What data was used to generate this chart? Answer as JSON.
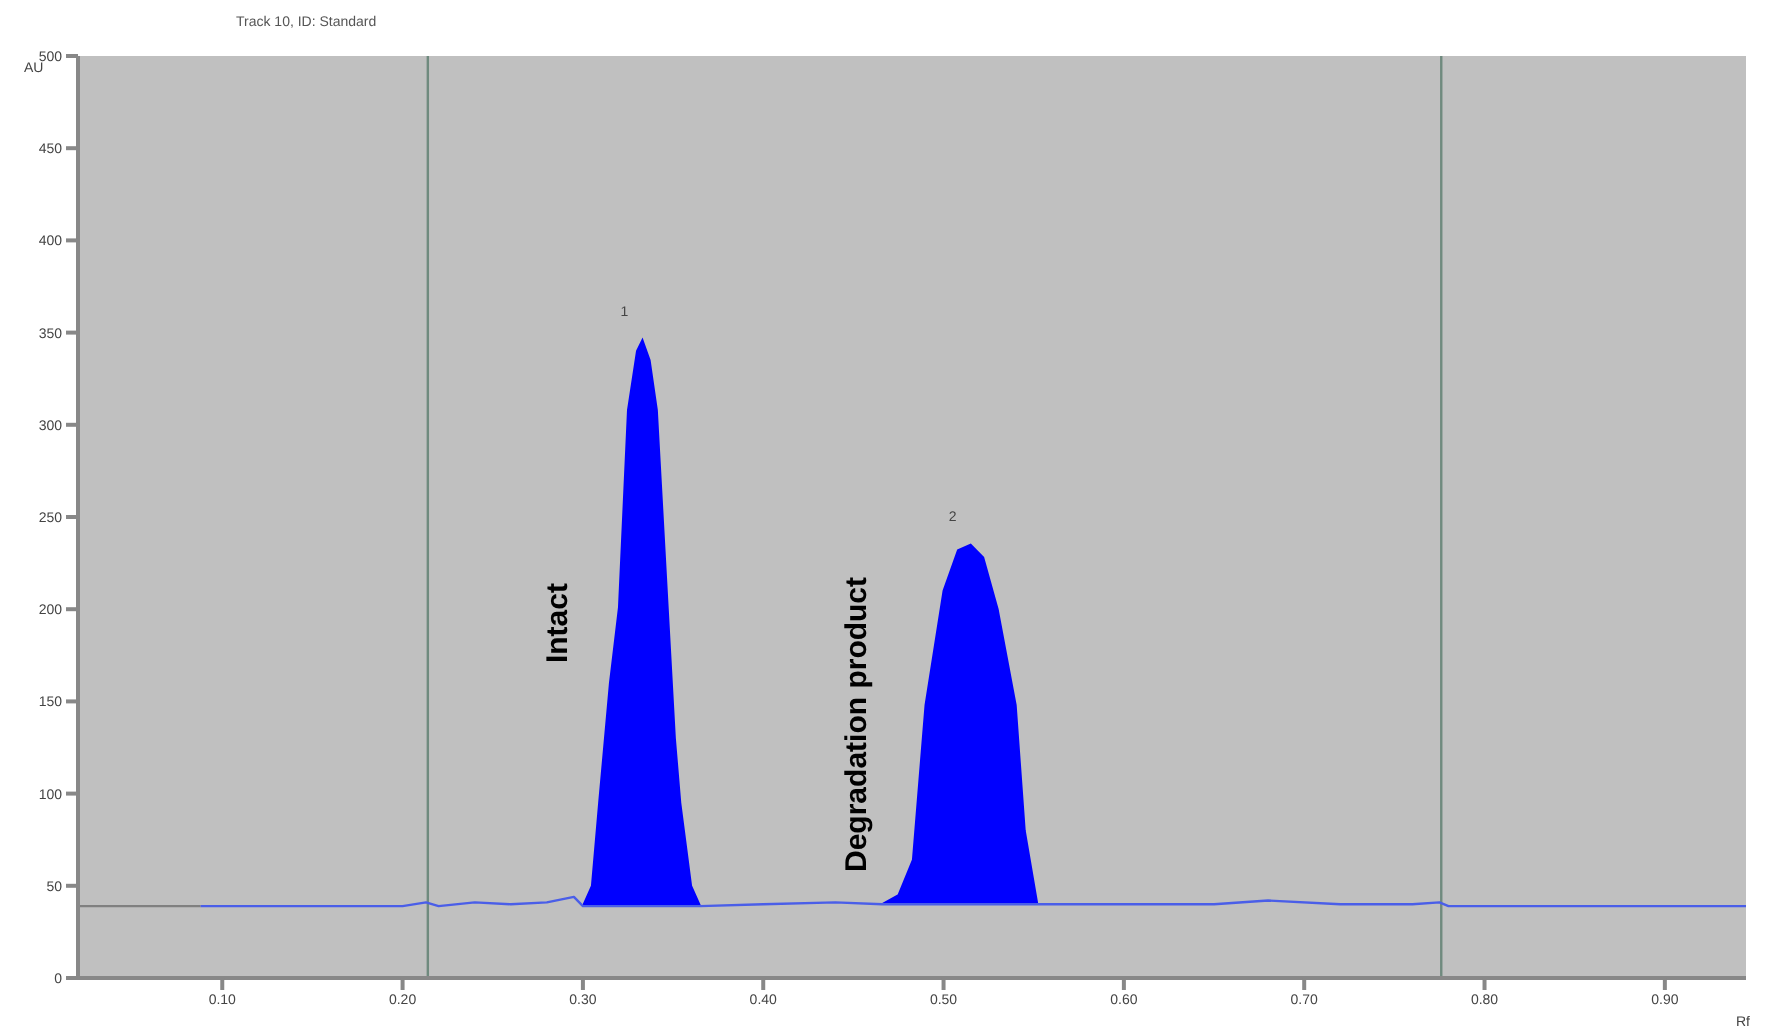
{
  "chart_data": {
    "type": "line",
    "title": "Track 10, ID: Standard",
    "xlabel": "Rf",
    "ylabel": "AU",
    "xlim": [
      0.02,
      0.945
    ],
    "ylim": [
      0,
      500
    ],
    "xticks": [
      {
        "value": 0.1,
        "label": "0.10"
      },
      {
        "value": 0.2,
        "label": "0.20"
      },
      {
        "value": 0.3,
        "label": "0.30"
      },
      {
        "value": 0.4,
        "label": "0.40"
      },
      {
        "value": 0.5,
        "label": "0.50"
      },
      {
        "value": 0.6,
        "label": "0.60"
      },
      {
        "value": 0.7,
        "label": "0.70"
      },
      {
        "value": 0.8,
        "label": "0.80"
      },
      {
        "value": 0.9,
        "label": "0.90"
      }
    ],
    "yticks": [
      0,
      50,
      100,
      150,
      200,
      250,
      300,
      350,
      400,
      450,
      500
    ],
    "series": [
      {
        "type": "line",
        "color": "#808080",
        "x": [
          0.02,
          0.088
        ],
        "values": [
          39,
          39
        ]
      },
      {
        "type": "line",
        "color": "#4a5ee8",
        "x": [
          0.088,
          0.2,
          0.213,
          0.22,
          0.24,
          0.26,
          0.28,
          0.295,
          0.3,
          0.365,
          0.4,
          0.44,
          0.466,
          0.552,
          0.6,
          0.65,
          0.68,
          0.72,
          0.76,
          0.775,
          0.78,
          0.945
        ],
        "values": [
          39,
          39,
          41,
          39,
          41,
          40,
          41,
          44,
          39,
          39,
          40,
          41,
          40,
          40,
          40,
          40,
          42,
          40,
          40,
          41,
          39,
          39
        ]
      },
      {
        "type": "area",
        "color": "#0000ff",
        "x": [
          0.3,
          0.305,
          0.309,
          0.315,
          0.32,
          0.325,
          0.33,
          0.333,
          0.337,
          0.341,
          0.347,
          0.351,
          0.354,
          0.36,
          0.365
        ],
        "values": [
          39,
          50,
          95,
          160,
          201,
          308,
          340,
          346,
          335,
          308,
          201,
          130,
          95,
          50,
          39
        ]
      },
      {
        "type": "area",
        "color": "#0000ff",
        "x": [
          0.466,
          0.475,
          0.483,
          0.49,
          0.5,
          0.508,
          0.515,
          0.522,
          0.53,
          0.54,
          0.545,
          0.552
        ],
        "values": [
          40,
          45,
          64,
          148,
          210,
          232,
          235,
          228,
          200,
          148,
          80,
          40
        ]
      }
    ],
    "ref_lines": [
      {
        "axis": "x",
        "value": 0.214,
        "color": "#6f8a7e"
      },
      {
        "axis": "x",
        "value": 0.776,
        "color": "#6f8a7e"
      }
    ],
    "annotations": [
      "Intact",
      "Degradation product",
      "1",
      "2"
    ],
    "legend": false,
    "grid": false
  }
}
